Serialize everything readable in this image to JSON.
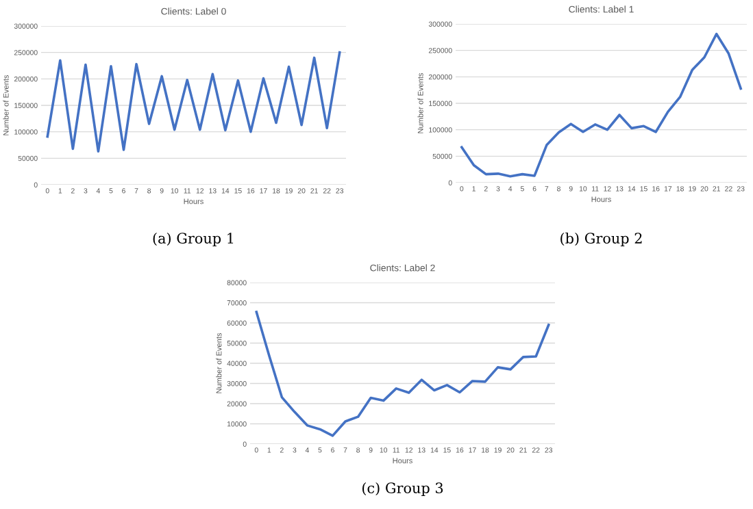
{
  "chart_data": [
    {
      "type": "line",
      "title": "Clients: Label 0",
      "xlabel": "Hours",
      "ylabel": "Number of Events",
      "annotations": [
        "(a) Group 1"
      ],
      "categories": [
        "0",
        "1",
        "2",
        "3",
        "4",
        "5",
        "6",
        "7",
        "8",
        "9",
        "10",
        "11",
        "12",
        "13",
        "14",
        "15",
        "16",
        "17",
        "18",
        "19",
        "20",
        "21",
        "22",
        "23"
      ],
      "series": [
        {
          "color": "#4472c4",
          "values": [
            91000,
            235000,
            68000,
            227000,
            63000,
            224000,
            66000,
            228000,
            115000,
            205000,
            104000,
            198000,
            104000,
            209000,
            103000,
            197000,
            100000,
            201000,
            117000,
            223000,
            113000,
            240000,
            107000,
            250000
          ]
        }
      ],
      "ylim": [
        0,
        300000
      ],
      "yticks": [
        0,
        50000,
        100000,
        150000,
        200000,
        250000,
        300000
      ],
      "grid": "y",
      "legend": false,
      "marker": "none",
      "line_style": "solid"
    },
    {
      "type": "line",
      "title": "Clients: Label 1",
      "xlabel": "Hours",
      "ylabel": "Number of Events",
      "annotations": [
        "(b) Group 2"
      ],
      "categories": [
        "0",
        "1",
        "2",
        "3",
        "4",
        "5",
        "6",
        "7",
        "8",
        "9",
        "10",
        "11",
        "12",
        "13",
        "14",
        "15",
        "16",
        "17",
        "18",
        "19",
        "20",
        "21",
        "22",
        "23"
      ],
      "series": [
        {
          "color": "#4472c4",
          "values": [
            67000,
            33000,
            16000,
            17000,
            12000,
            16000,
            13000,
            71000,
            95000,
            111000,
            96000,
            110000,
            100000,
            128000,
            103000,
            107000,
            96000,
            134000,
            162000,
            213000,
            237000,
            281000,
            244000,
            178000
          ]
        }
      ],
      "ylim": [
        0,
        300000
      ],
      "yticks": [
        0,
        50000,
        100000,
        150000,
        200000,
        250000,
        300000
      ],
      "grid": "y",
      "legend": false,
      "marker": "none",
      "line_style": "solid"
    },
    {
      "type": "line",
      "title": "Clients: Label 2",
      "xlabel": "Hours",
      "ylabel": "Number of Events",
      "annotations": [
        "(c) Group 3"
      ],
      "categories": [
        "0",
        "1",
        "2",
        "3",
        "4",
        "5",
        "6",
        "7",
        "8",
        "9",
        "10",
        "11",
        "12",
        "13",
        "14",
        "15",
        "16",
        "17",
        "18",
        "19",
        "20",
        "21",
        "22",
        "23"
      ],
      "series": [
        {
          "color": "#4472c4",
          "values": [
            65400,
            43800,
            23200,
            15900,
            9200,
            7300,
            4100,
            11200,
            13500,
            22900,
            21500,
            27500,
            25400,
            31800,
            26600,
            29200,
            25600,
            31200,
            30900,
            38000,
            37000,
            43100,
            43400,
            59000
          ]
        }
      ],
      "ylim": [
        0,
        80000
      ],
      "yticks": [
        0,
        10000,
        20000,
        30000,
        40000,
        50000,
        60000,
        70000,
        80000
      ],
      "grid": "y",
      "legend": false,
      "marker": "none",
      "line_style": "solid"
    }
  ]
}
